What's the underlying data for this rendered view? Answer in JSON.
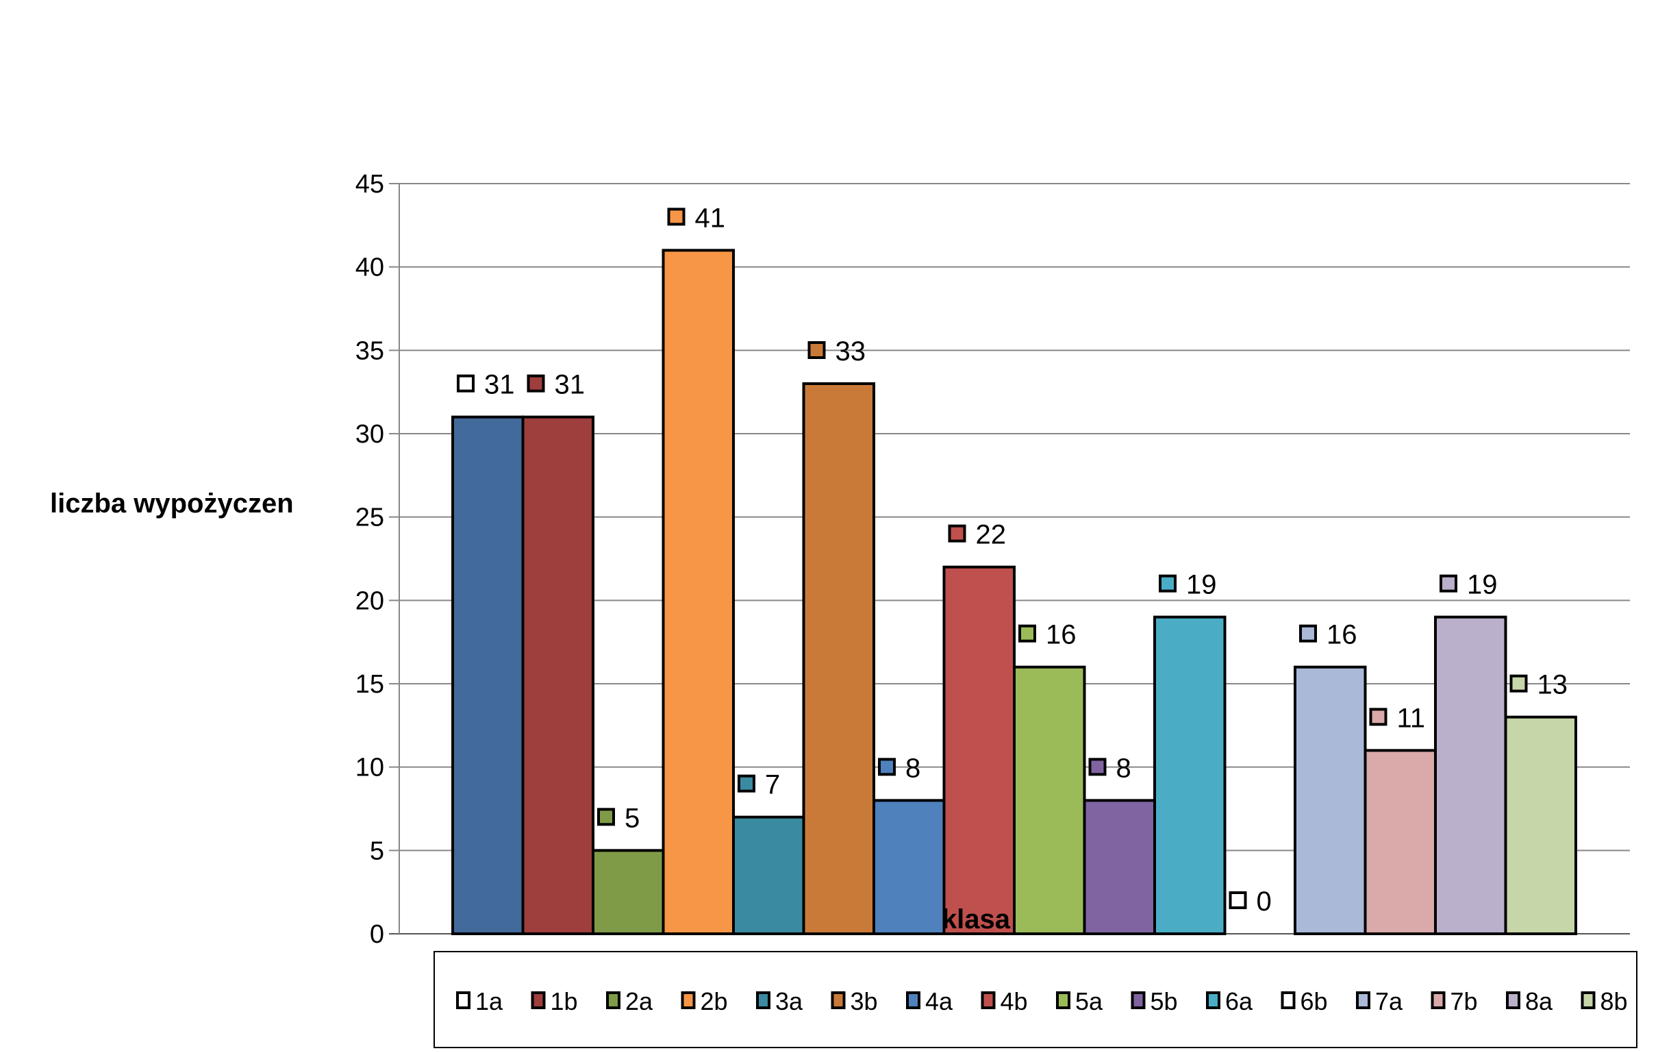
{
  "chart_data": {
    "type": "bar",
    "title": "",
    "xlabel": "klasa",
    "ylabel": "liczba wypożyczeń",
    "ylabel_display": "liczba wypożyczen",
    "ylim": [
      0,
      45
    ],
    "yticks": [
      0,
      5,
      10,
      15,
      20,
      25,
      30,
      35,
      40,
      45
    ],
    "grid": true,
    "legend_position": "bottom",
    "series": [
      {
        "name": "1a",
        "value": 31,
        "color": "#426A9B"
      },
      {
        "name": "1b",
        "value": 31,
        "color": "#9E3E3D"
      },
      {
        "name": "2a",
        "value": 5,
        "color": "#7F9B48"
      },
      {
        "name": "2b",
        "value": 41,
        "color": "#F79646"
      },
      {
        "name": "3a",
        "value": 7,
        "color": "#3A8BA1"
      },
      {
        "name": "3b",
        "value": 33,
        "color": "#CA7A38"
      },
      {
        "name": "4a",
        "value": 8,
        "color": "#4F81BD"
      },
      {
        "name": "4b",
        "value": 22,
        "color": "#C0504D"
      },
      {
        "name": "5a",
        "value": 16,
        "color": "#9BBB59"
      },
      {
        "name": "5b",
        "value": 8,
        "color": "#8064A2"
      },
      {
        "name": "6a",
        "value": 19,
        "color": "#4BACC6"
      },
      {
        "name": "6b",
        "value": 0,
        "color": "#FFFFFF"
      },
      {
        "name": "7a",
        "value": 16,
        "color": "#AAB9D8"
      },
      {
        "name": "7b",
        "value": 11,
        "color": "#D9AAA9"
      },
      {
        "name": "8a",
        "value": 19,
        "color": "#BAB0CB"
      },
      {
        "name": "8b",
        "value": 13,
        "color": "#C7D6A9"
      }
    ]
  }
}
